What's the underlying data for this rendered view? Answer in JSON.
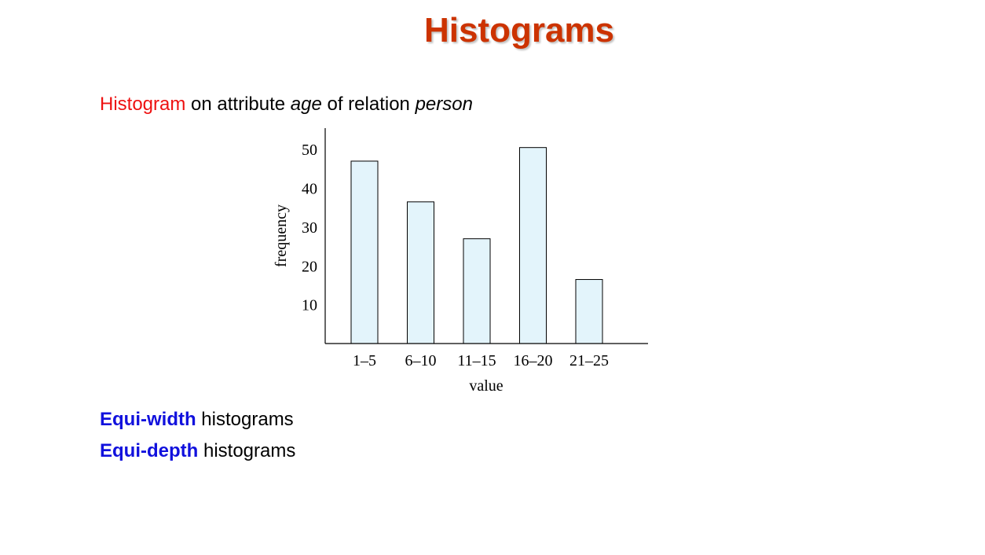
{
  "slide": {
    "title": "Histograms"
  },
  "intro": {
    "keyword": "Histogram",
    "text1": " on attribute ",
    "attr": "age",
    "text2": " of relation ",
    "relation": "person"
  },
  "bullets": [
    {
      "keyword": "Equi-width",
      "rest": " histograms"
    },
    {
      "keyword": "Equi-depth",
      "rest": " histograms"
    }
  ],
  "colors": {
    "title": "#cc3300",
    "keyword_red": "#ee1111",
    "keyword_blue": "#1111dd",
    "bar_fill": "#e3f4fb",
    "bar_stroke": "#000000"
  },
  "chart_data": {
    "type": "bar",
    "categories": [
      "1–5",
      "6–10",
      "11–15",
      "16–20",
      "21–25"
    ],
    "values": [
      47,
      36.5,
      27,
      50.5,
      16.5
    ],
    "xlabel": "value",
    "ylabel": "frequency",
    "yticks": [
      10,
      20,
      30,
      40,
      50
    ],
    "ylim": [
      0,
      55.5
    ],
    "grid": false,
    "legend": "none"
  }
}
